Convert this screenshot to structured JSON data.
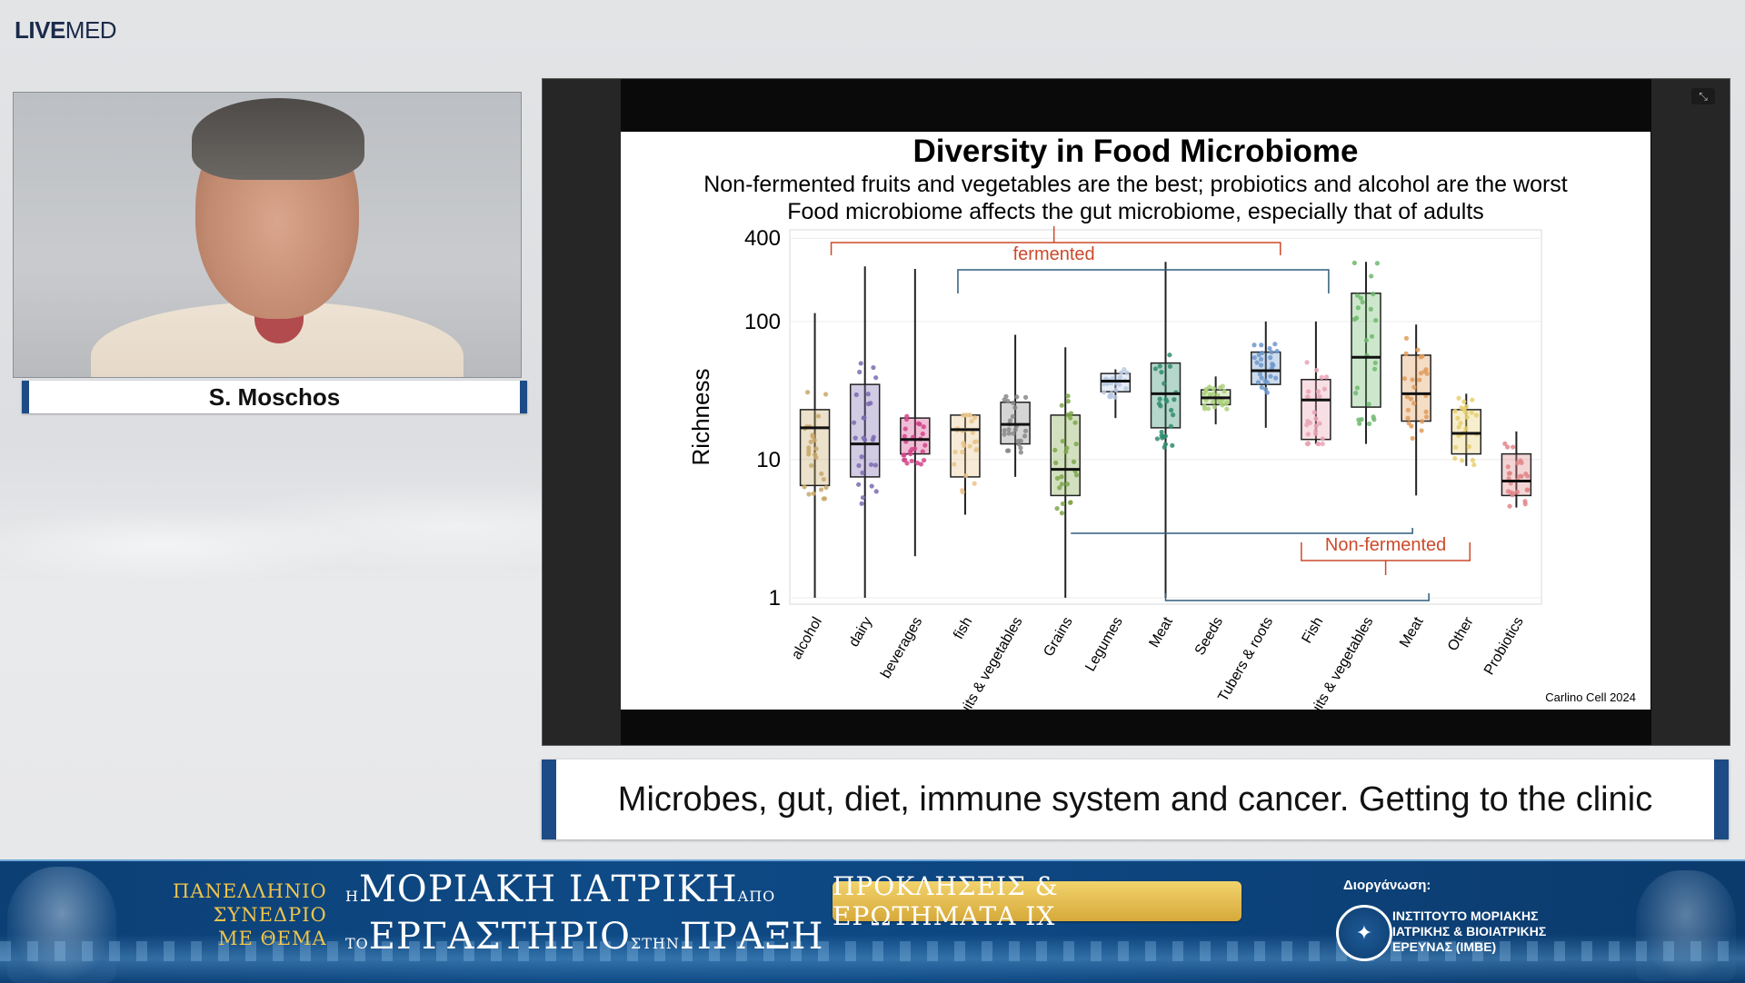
{
  "brand": {
    "live": "LIVE",
    "med": "MED"
  },
  "speaker": {
    "name": "S. Moschos"
  },
  "slide": {
    "title": "Diversity in Food Microbiome",
    "subtitle1": "Non-fermented fruits and vegetables are the best; probiotics and alcohol are the worst",
    "subtitle2": "Food microbiome affects the gut microbiome, especially that of adults",
    "citation": "Carlino Cell 2024"
  },
  "caption": "Microbes, gut, diet, immune system and cancer. Getting to the clinic",
  "banner": {
    "left_text": [
      "ΠΑΝΕΛΛΗΝΙΟ",
      "ΣΥΝΕΔΡΙΟ",
      "ΜΕ ΘΕΜΑ"
    ],
    "line1_prefix": "Η",
    "line1_main": "ΜΟΡΙΑΚΗ ΙΑΤΡΙΚΗ",
    "line1_suffix": "ΑΠΟ",
    "line2_prefix": "ΤΟ",
    "line2_main": "ΕΡΓΑΣΤΗΡΙΟ",
    "line2_mid": "ΣΤΗΝ",
    "line2_end": "ΠΡΑΞΗ",
    "pill": "ΠΡΟΚΛΗΣΕΙΣ & ΕΡΩΤΗΜΑΤΑ IX",
    "org_label": "Διοργάνωση:",
    "org_lines": [
      "ΙΝΣΤΙΤΟΥΤΟ ΜΟΡΙΑΚΗΣ",
      "ΙΑΤΡΙΚΗΣ & ΒΙΟΙΑΤΡΙΚΗΣ",
      "ΕΡΕΥΝΑΣ (ΙΜΒΕ)"
    ]
  },
  "icons": {
    "fullscreen": "collapse-fullscreen-icon",
    "org_logo": "imbe-logo-icon"
  },
  "chart_data": {
    "type": "box",
    "ylabel": "Richness",
    "yscale": "log",
    "ylim": [
      1,
      400
    ],
    "yticks": [
      1,
      10,
      100,
      400
    ],
    "groups": [
      {
        "label": "fermented",
        "from": "alcohol",
        "to": "Tubers & roots"
      },
      {
        "label": "Non-fermented",
        "from": "Grains",
        "to": "Meat"
      }
    ],
    "categories": [
      "alcohol",
      "dairy",
      "beverages",
      "fish",
      "Fruits & vegetables",
      "Grains",
      "Legumes",
      "Meat",
      "Seeds",
      "Tubers & roots",
      "Fish",
      "Fruits & vegetables",
      "Meat",
      "Other",
      "Probiotics"
    ],
    "boxes": [
      {
        "min": 1,
        "q1": 6.5,
        "median": 17,
        "q3": 23,
        "max": 115,
        "color": "#c9a869"
      },
      {
        "min": 1,
        "q1": 7.5,
        "median": 13,
        "q3": 35,
        "max": 250,
        "color": "#7c6bb0"
      },
      {
        "min": 2,
        "q1": 11,
        "median": 14,
        "q3": 20,
        "max": 240,
        "color": "#d2458a"
      },
      {
        "min": 4,
        "q1": 7.5,
        "median": 16.5,
        "q3": 21,
        "max": 21,
        "color": "#e8c489"
      },
      {
        "min": 7.5,
        "q1": 13,
        "median": 18,
        "q3": 26,
        "max": 80,
        "color": "#888888"
      },
      {
        "min": 1,
        "q1": 5.5,
        "median": 8.5,
        "q3": 21,
        "max": 65,
        "color": "#7fa64a"
      },
      {
        "min": 20,
        "q1": 31,
        "median": 37,
        "q3": 42,
        "max": 45,
        "color": "#b7c9e2"
      },
      {
        "min": 1,
        "q1": 17,
        "median": 30,
        "q3": 50,
        "max": 270,
        "color": "#2f8c6e"
      },
      {
        "min": 18,
        "q1": 25,
        "median": 28,
        "q3": 32,
        "max": 40,
        "color": "#aad07a"
      },
      {
        "min": 17,
        "q1": 35,
        "median": 44,
        "q3": 60,
        "max": 100,
        "color": "#6d98cc"
      },
      {
        "min": 13,
        "q1": 14,
        "median": 27,
        "q3": 38,
        "max": 100,
        "color": "#e9a3b4"
      },
      {
        "min": 13,
        "q1": 24,
        "median": 55,
        "q3": 160,
        "max": 270,
        "color": "#6fb96f"
      },
      {
        "min": 5.5,
        "q1": 19,
        "median": 30,
        "q3": 57,
        "max": 95,
        "color": "#e09c5a"
      },
      {
        "min": 9,
        "q1": 11,
        "median": 15.5,
        "q3": 23,
        "max": 30,
        "color": "#e6cf70"
      },
      {
        "min": 4.5,
        "q1": 5.5,
        "median": 7,
        "q3": 11,
        "max": 16,
        "color": "#e0878a"
      }
    ]
  }
}
